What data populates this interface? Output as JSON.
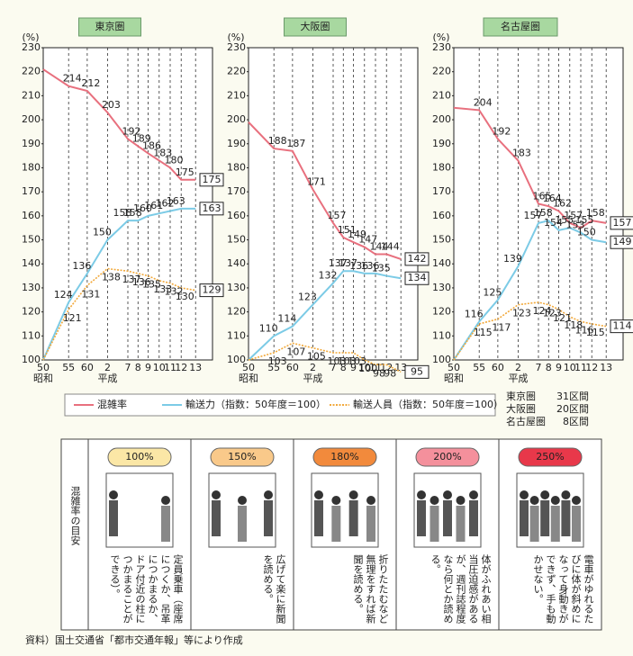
{
  "chart_data": [
    {
      "type": "line",
      "title": "東京圏",
      "ylabel": "(%)",
      "annotations": [
        "昭和",
        "平成"
      ],
      "categories": [
        "50",
        "55",
        "60",
        "2",
        "7",
        "8",
        "9",
        "10",
        "11",
        "12",
        "13"
      ],
      "ylim": [
        100,
        230
      ],
      "yticks": [
        100,
        110,
        120,
        130,
        140,
        150,
        160,
        170,
        180,
        190,
        200,
        210,
        220,
        230
      ],
      "grid": "x",
      "series": [
        {
          "name": "混雑率",
          "color": "#e8707e",
          "values": [
            221,
            214,
            212,
            203,
            192,
            189,
            186,
            183,
            180,
            175,
            175
          ]
        },
        {
          "name": "輸送力（指数：50年度＝100）",
          "color": "#7ccbe6",
          "values": [
            100,
            124,
            136,
            150,
            158,
            158,
            160,
            161,
            162,
            163,
            163
          ]
        },
        {
          "name": "輸送人員（指数：50年度＝100）",
          "color": "#f2a93b",
          "values": [
            100,
            121,
            131,
            138,
            137,
            136,
            135,
            133,
            132,
            130,
            129
          ]
        }
      ]
    },
    {
      "type": "line",
      "title": "大阪圏",
      "ylabel": "(%)",
      "annotations": [
        "昭和",
        "平成"
      ],
      "categories": [
        "50",
        "55",
        "60",
        "2",
        "7",
        "8",
        "9",
        "10",
        "11",
        "12",
        "13"
      ],
      "ylim": [
        100,
        230
      ],
      "yticks": [
        100,
        110,
        120,
        130,
        140,
        150,
        160,
        170,
        180,
        190,
        200,
        210,
        220,
        230
      ],
      "grid": "x",
      "series": [
        {
          "color": "#e8707e",
          "values": [
            199,
            188,
            187,
            171,
            157,
            151,
            149,
            147,
            144,
            144,
            142
          ]
        },
        {
          "color": "#7ccbe6",
          "values": [
            100,
            110,
            114,
            123,
            132,
            137,
            137,
            136,
            136,
            135,
            134
          ]
        },
        {
          "color": "#f2a93b",
          "values": [
            100,
            103,
            107,
            105,
            103,
            103,
            103,
            100,
            98,
            98,
            95
          ]
        }
      ]
    },
    {
      "type": "line",
      "title": "名古屋圏",
      "ylabel": "(%)",
      "annotations": [
        "昭和",
        "平成"
      ],
      "categories": [
        "50",
        "55",
        "60",
        "2",
        "7",
        "8",
        "9",
        "10",
        "11",
        "12",
        "13"
      ],
      "ylim": [
        100,
        230
      ],
      "yticks": [
        100,
        110,
        120,
        130,
        140,
        150,
        160,
        170,
        180,
        190,
        200,
        210,
        220,
        230
      ],
      "grid": "x",
      "series": [
        {
          "color": "#e8707e",
          "values": [
            205,
            204,
            192,
            183,
            165,
            164,
            162,
            157,
            155,
            158,
            157
          ]
        },
        {
          "color": "#7ccbe6",
          "values": [
            100,
            116,
            125,
            139,
            157,
            158,
            154,
            155,
            153,
            150,
            149
          ]
        },
        {
          "color": "#f2a93b",
          "values": [
            100,
            115,
            117,
            123,
            124,
            123,
            121,
            118,
            116,
            115,
            114
          ]
        }
      ]
    }
  ],
  "segments": [
    {
      "region": "東京圏",
      "count": "31区間"
    },
    {
      "region": "大阪圏",
      "count": "20区間"
    },
    {
      "region": "名古屋圏",
      "count": "8区間"
    }
  ],
  "guide": {
    "label": "混雑率の目安",
    "levels": [
      {
        "rate": "100%",
        "color": "#fbe7a6",
        "text": "定員乗車（座席につくか、吊革につかまるか、ドア付近の柱につかまることができる）。"
      },
      {
        "rate": "150%",
        "color": "#f9c98a",
        "text": "広げて楽に新聞を読める。"
      },
      {
        "rate": "180%",
        "color": "#f28a3c",
        "text": "折りたたむなど無理をすれば新聞を読める。"
      },
      {
        "rate": "200%",
        "color": "#f4909c",
        "text": "体がふれあい相当圧迫感があるが、週刊誌程度なら何とか読める。"
      },
      {
        "rate": "250%",
        "color": "#e8384a",
        "text": "電車がゆれるたびに体が斜めになって身動きができず、手も動かせない。"
      }
    ]
  },
  "source": "資料）国土交通省「都市交通年報」等により作成"
}
